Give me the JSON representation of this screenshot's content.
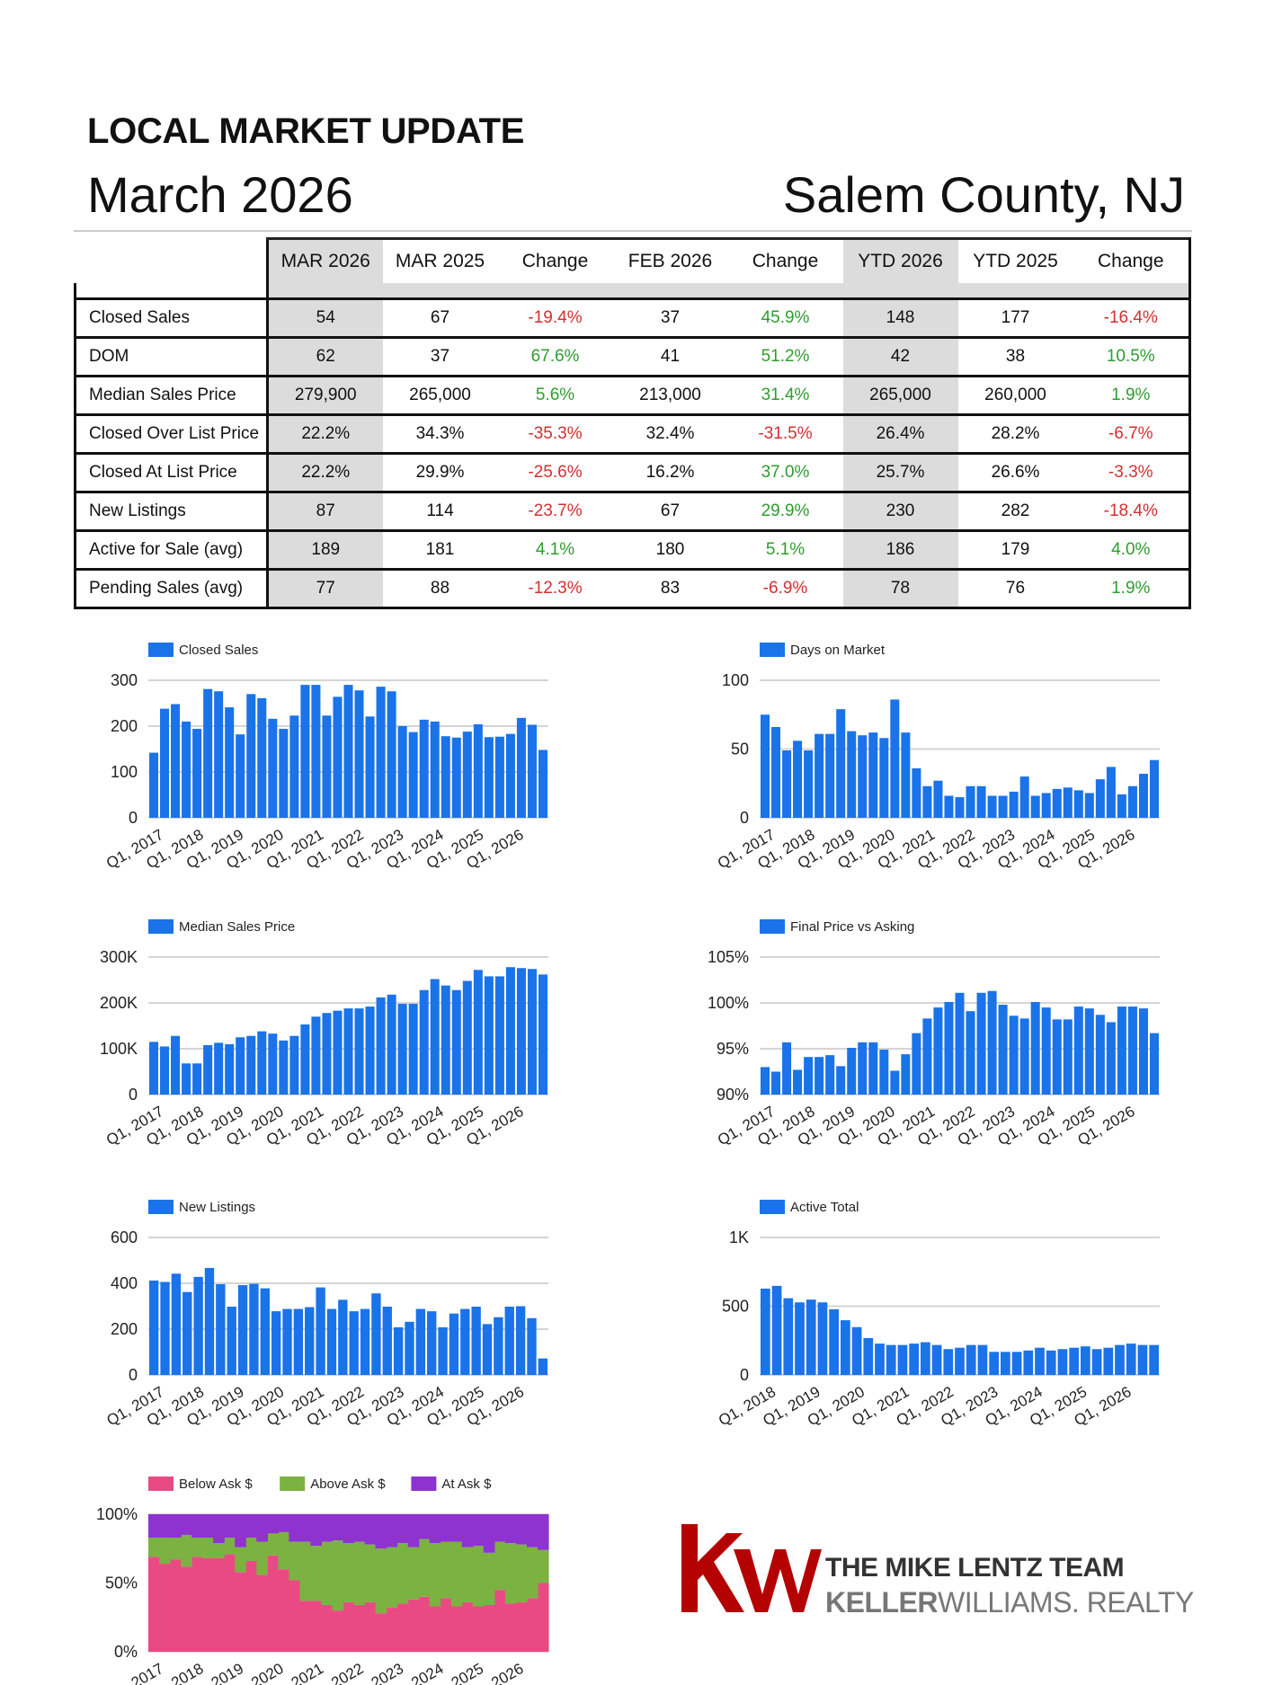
{
  "header": {
    "title": "LOCAL MARKET UPDATE",
    "month": "March 2026",
    "region": "Salem County, NJ"
  },
  "table": {
    "columns": [
      "MAR 2026",
      "MAR 2025",
      "Change",
      "FEB 2026",
      "Change",
      "YTD 2026",
      "YTD 2025",
      "Change"
    ],
    "rows": [
      {
        "label": "Closed Sales",
        "values": [
          "54",
          "67",
          "-19.4%",
          "37",
          "45.9%",
          "148",
          "177",
          "-16.4%"
        ]
      },
      {
        "label": "DOM",
        "values": [
          "62",
          "37",
          "67.6%",
          "41",
          "51.2%",
          "42",
          "38",
          "10.5%"
        ]
      },
      {
        "label": "Median Sales Price",
        "values": [
          "279,900",
          "265,000",
          "5.6%",
          "213,000",
          "31.4%",
          "265,000",
          "260,000",
          "1.9%"
        ]
      },
      {
        "label": "Closed Over List Price",
        "values": [
          "22.2%",
          "34.3%",
          "-35.3%",
          "32.4%",
          "-31.5%",
          "26.4%",
          "28.2%",
          "-6.7%"
        ]
      },
      {
        "label": "Closed At List Price",
        "values": [
          "22.2%",
          "29.9%",
          "-25.6%",
          "16.2%",
          "37.0%",
          "25.7%",
          "26.6%",
          "-3.3%"
        ]
      },
      {
        "label": "New Listings",
        "values": [
          "87",
          "114",
          "-23.7%",
          "67",
          "29.9%",
          "230",
          "282",
          "-18.4%"
        ]
      },
      {
        "label": "Active for Sale (avg)",
        "values": [
          "189",
          "181",
          "4.1%",
          "180",
          "5.1%",
          "186",
          "179",
          "4.0%"
        ]
      },
      {
        "label": "Pending Sales (avg)",
        "values": [
          "77",
          "88",
          "-12.3%",
          "83",
          "-6.9%",
          "78",
          "76",
          "1.9%"
        ]
      }
    ],
    "colors": {
      "negative": "#d32f2f",
      "positive": "#2e9d2e",
      "shaded": "#dcdcdc"
    }
  },
  "chart_data": [
    {
      "type": "bar",
      "legend": "Closed Sales",
      "ylim": [
        0,
        300
      ],
      "yticks": [
        "0",
        "100",
        "200",
        "300"
      ],
      "xtick_labels": [
        "Q1, 2017",
        "Q1, 2018",
        "Q1, 2019",
        "Q1, 2020",
        "Q1, 2021",
        "Q1, 2022",
        "Q1, 2023",
        "Q1, 2024",
        "Q1, 2025",
        "Q1, 2026"
      ],
      "values": [
        142,
        238,
        248,
        210,
        194,
        281,
        276,
        241,
        182,
        270,
        261,
        216,
        194,
        223,
        290,
        290,
        223,
        264,
        290,
        278,
        221,
        286,
        276,
        200,
        187,
        214,
        210,
        178,
        175,
        188,
        204,
        176,
        177,
        183,
        218,
        203,
        148
      ],
      "grid": true,
      "legend_position": "top-left"
    },
    {
      "type": "bar",
      "legend": "Days on Market",
      "ylim": [
        0,
        100
      ],
      "yticks": [
        "0",
        "50",
        "100"
      ],
      "xtick_labels": [
        "Q1, 2017",
        "Q1, 2018",
        "Q1, 2019",
        "Q1, 2020",
        "Q1, 2021",
        "Q1, 2022",
        "Q1, 2023",
        "Q1, 2024",
        "Q1, 2025",
        "Q1, 2026"
      ],
      "values": [
        75,
        66,
        49,
        56,
        49,
        61,
        61,
        79,
        63,
        60,
        62,
        58,
        86,
        62,
        36,
        23,
        27,
        16,
        15,
        23,
        23,
        16,
        16,
        19,
        30,
        16,
        18,
        21,
        22,
        20,
        18,
        28,
        37,
        17,
        23,
        32,
        42
      ],
      "grid": true,
      "legend_position": "top-left"
    },
    {
      "type": "bar",
      "legend": "Median Sales Price",
      "ylim": [
        0,
        300000
      ],
      "yticks": [
        "0",
        "100K",
        "200K",
        "300K"
      ],
      "xtick_labels": [
        "Q1, 2017",
        "Q1, 2018",
        "Q1, 2019",
        "Q1, 2020",
        "Q1, 2021",
        "Q1, 2022",
        "Q1, 2023",
        "Q1, 2024",
        "Q1, 2025",
        "Q1, 2026"
      ],
      "values": [
        115000,
        105000,
        128000,
        68000,
        68000,
        108000,
        113000,
        110000,
        125000,
        128000,
        138000,
        133000,
        118000,
        128000,
        153000,
        170000,
        178000,
        183000,
        188000,
        188000,
        192000,
        212000,
        218000,
        198000,
        198000,
        228000,
        252000,
        238000,
        228000,
        248000,
        272000,
        258000,
        258000,
        278000,
        276000,
        274000,
        262000
      ],
      "grid": true,
      "legend_position": "top-left"
    },
    {
      "type": "bar",
      "legend": "Final Price vs Asking",
      "ylim": [
        90,
        105
      ],
      "yticks": [
        "90%",
        "95%",
        "100%",
        "105%"
      ],
      "xtick_labels": [
        "Q1, 2017",
        "Q1, 2018",
        "Q1, 2019",
        "Q1, 2020",
        "Q1, 2021",
        "Q1, 2022",
        "Q1, 2023",
        "Q1, 2024",
        "Q1, 2025",
        "Q1, 2026"
      ],
      "values": [
        93.0,
        92.5,
        95.7,
        92.7,
        94.1,
        94.1,
        94.3,
        93.1,
        95.1,
        95.7,
        95.7,
        94.9,
        92.6,
        94.4,
        96.7,
        98.3,
        99.5,
        100.1,
        101.1,
        99.1,
        101.1,
        101.3,
        99.8,
        98.6,
        98.3,
        100.1,
        99.5,
        98.2,
        98.2,
        99.6,
        99.4,
        98.7,
        97.9,
        99.6,
        99.6,
        99.4,
        96.7
      ],
      "grid": true,
      "legend_position": "top-left"
    },
    {
      "type": "bar",
      "legend": "New Listings",
      "ylim": [
        0,
        600
      ],
      "yticks": [
        "0",
        "200",
        "400",
        "600"
      ],
      "xtick_labels": [
        "Q1, 2017",
        "Q1, 2018",
        "Q1, 2019",
        "Q1, 2020",
        "Q1, 2021",
        "Q1, 2022",
        "Q1, 2023",
        "Q1, 2024",
        "Q1, 2025",
        "Q1, 2026"
      ],
      "values": [
        412,
        406,
        442,
        362,
        428,
        467,
        396,
        298,
        392,
        398,
        378,
        278,
        288,
        288,
        296,
        382,
        288,
        328,
        278,
        288,
        356,
        298,
        208,
        232,
        288,
        278,
        208,
        268,
        288,
        298,
        222,
        252,
        298,
        300,
        248,
        72
      ],
      "grid": true,
      "legend_position": "top-left"
    },
    {
      "type": "bar",
      "legend": "Active Total",
      "ylim": [
        0,
        1000
      ],
      "yticks": [
        "0",
        "500",
        "1K"
      ],
      "xtick_labels": [
        "Q1, 2018",
        "Q1, 2019",
        "Q1, 2020",
        "Q1, 2021",
        "Q1, 2022",
        "Q1, 2023",
        "Q1, 2024",
        "Q1, 2025",
        "Q1, 2026"
      ],
      "values": [
        628,
        648,
        558,
        528,
        548,
        528,
        478,
        398,
        348,
        268,
        228,
        218,
        218,
        228,
        238,
        218,
        188,
        198,
        218,
        218,
        168,
        168,
        168,
        178,
        198,
        178,
        188,
        198,
        208,
        188,
        198,
        218,
        228,
        218,
        218
      ],
      "grid": true,
      "legend_position": "top-left"
    },
    {
      "type": "area",
      "stacked": true,
      "ylim": [
        0,
        100
      ],
      "yticks": [
        "0%",
        "50%",
        "100%"
      ],
      "xtick_labels": [
        "Q1, 2017",
        "Q1, 2018",
        "Q1, 2019",
        "Q1, 2020",
        "Q1, 2021",
        "Q1, 2022",
        "Q1, 2023",
        "Q1, 2024",
        "Q1, 2025",
        "Q1, 2026"
      ],
      "series": [
        {
          "name": "Below Ask $",
          "color": "#ea4a84",
          "values": [
            69,
            64,
            67,
            62,
            69,
            68,
            68,
            71,
            58,
            66,
            56,
            70,
            60,
            52,
            37,
            37,
            34,
            30,
            36,
            34,
            36,
            28,
            32,
            35,
            38,
            40,
            33,
            39,
            33,
            36,
            33,
            34,
            45,
            35,
            36,
            39,
            50
          ]
        },
        {
          "name": "Above Ask $",
          "color": "#7bb241",
          "values": [
            14,
            19,
            16,
            23,
            14,
            15,
            11,
            12,
            18,
            17,
            24,
            16,
            27,
            28,
            43,
            40,
            46,
            51,
            43,
            46,
            42,
            47,
            44,
            44,
            38,
            42,
            46,
            41,
            47,
            40,
            44,
            38,
            35,
            44,
            42,
            37,
            24
          ]
        },
        {
          "name": "At Ask $",
          "color": "#8e33d0",
          "values": [
            17,
            17,
            17,
            15,
            17,
            17,
            21,
            17,
            24,
            17,
            20,
            14,
            13,
            20,
            20,
            23,
            20,
            19,
            21,
            20,
            22,
            25,
            24,
            21,
            24,
            18,
            21,
            20,
            20,
            24,
            23,
            28,
            20,
            21,
            22,
            24,
            26
          ]
        }
      ],
      "grid": true,
      "legend_position": "top-left"
    }
  ],
  "logo": {
    "team": "THE MIKE LENTZ TEAM",
    "brand_bold": "KELLER",
    "brand_rest": "WILLIAMS. REALTY",
    "monogram_color": "#b40101"
  }
}
